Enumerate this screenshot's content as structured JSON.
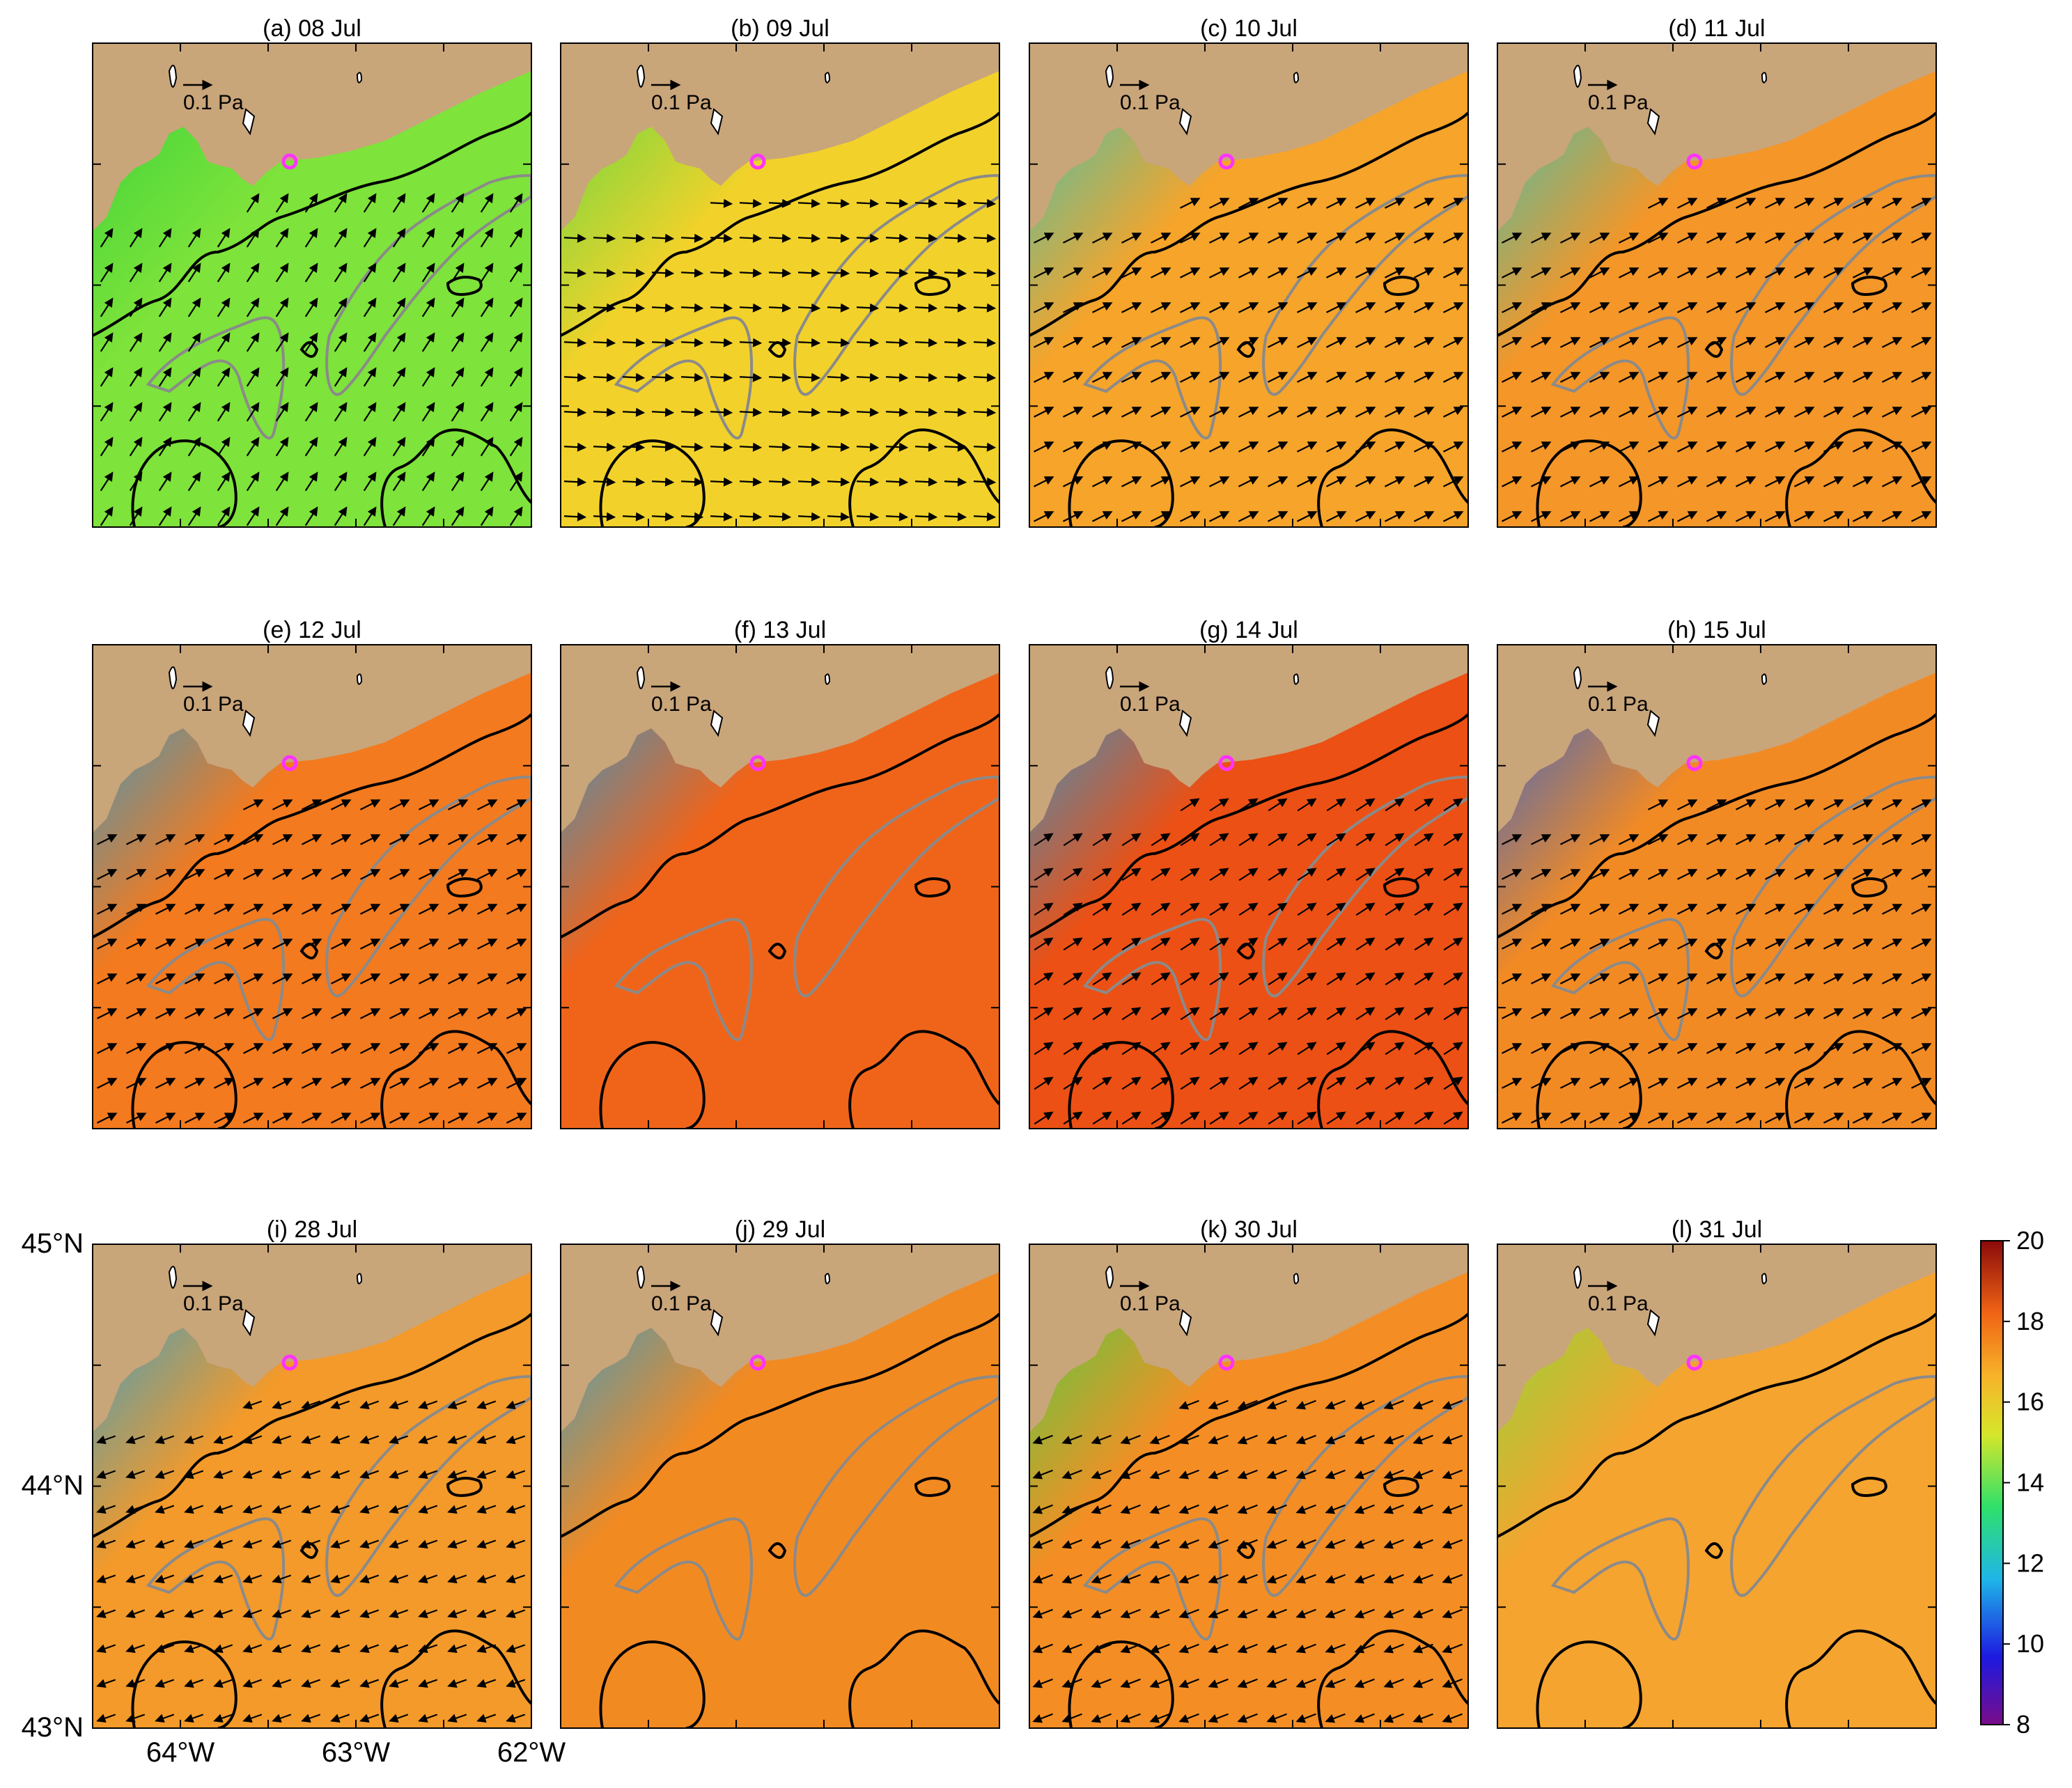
{
  "panels": [
    {
      "title": "(a) 08 Jul",
      "wind": {
        "u": 0.55,
        "v": 0.85
      }
    },
    {
      "title": "(b) 09 Jul",
      "wind": {
        "u": 1.0,
        "v": -0.05
      }
    },
    {
      "title": "(c) 10 Jul",
      "wind": {
        "u": 0.9,
        "v": 0.45
      }
    },
    {
      "title": "(d) 11 Jul",
      "wind": {
        "u": 0.9,
        "v": 0.45
      }
    },
    {
      "title": "(e) 12 Jul",
      "wind": {
        "u": 0.9,
        "v": 0.45
      }
    },
    {
      "title": "(f) 13 Jul",
      "wind": {
        "u": 0.0,
        "v": 0.0
      }
    },
    {
      "title": "(g) 14 Jul",
      "wind": {
        "u": 0.85,
        "v": 0.55
      }
    },
    {
      "title": "(h) 15 Jul",
      "wind": {
        "u": 0.9,
        "v": 0.45
      }
    },
    {
      "title": "(i) 28 Jul",
      "wind": {
        "u": -0.85,
        "v": -0.3
      }
    },
    {
      "title": "(j) 29 Jul",
      "wind": {
        "u": 0.0,
        "v": 0.0
      }
    },
    {
      "title": "(k) 30 Jul",
      "wind": {
        "u": -0.9,
        "v": -0.35
      }
    },
    {
      "title": "(l) 31 Jul",
      "wind": {
        "u": 0.0,
        "v": 0.0
      }
    }
  ],
  "scale_arrow_label": "0.1 Pa",
  "axes": {
    "lat_labels": [
      "45°N",
      "44°N",
      "43°N"
    ],
    "lon_labels": [
      "64°W",
      "63°W",
      "62°W"
    ],
    "lat_range": [
      43,
      45
    ],
    "lon_range": [
      -64.5,
      -62
    ]
  },
  "colorbar": {
    "ticks": [
      "20",
      "18",
      "16",
      "14",
      "12",
      "10",
      "8"
    ],
    "range": [
      8,
      20
    ],
    "colors": [
      "#7a0c8a",
      "#1d1ae0",
      "#1fb5e8",
      "#2fe06a",
      "#d6e62a",
      "#f7b32a",
      "#f06414",
      "#8a0a0a"
    ]
  },
  "colors": {
    "land": "#c9a57a",
    "station_marker": "#ff33ff",
    "coast_contour": "#000000",
    "isobath": "#8a8a8a"
  }
}
